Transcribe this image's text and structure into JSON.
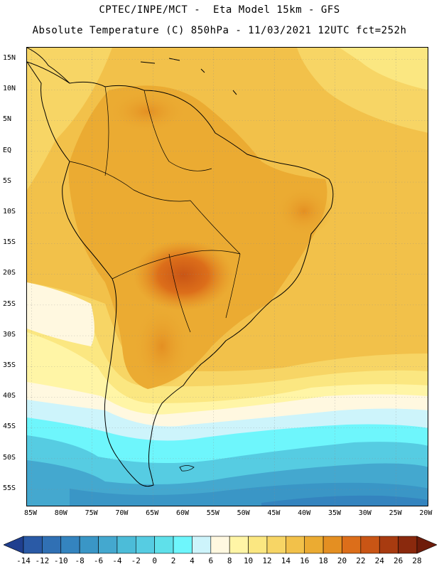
{
  "header": {
    "title_line1": "CPTEC/INPE/MCT -  Eta Model 15km - GFS",
    "title_line2": "Absolute Temperature (C) 850hPa - 11/03/2021 12UTC fct=252h"
  },
  "map": {
    "lat_labels": [
      "15N",
      "10N",
      "5N",
      "EQ",
      "5S",
      "10S",
      "15S",
      "20S",
      "25S",
      "30S",
      "35S",
      "40S",
      "45S",
      "50S",
      "55S"
    ],
    "lon_labels": [
      "85W",
      "80W",
      "75W",
      "70W",
      "65W",
      "60W",
      "55W",
      "50W",
      "45W",
      "40W",
      "35W",
      "30W",
      "25W",
      "20W"
    ]
  },
  "colorbar": {
    "labels": [
      "-14",
      "-12",
      "-10",
      "-8",
      "-6",
      "-4",
      "-2",
      "0",
      "2",
      "4",
      "6",
      "8",
      "10",
      "12",
      "14",
      "16",
      "18",
      "20",
      "22",
      "24",
      "26",
      "28"
    ],
    "colors": [
      "#1f3f8f",
      "#2a5aa6",
      "#3070b4",
      "#3484bf",
      "#3a96c6",
      "#44a8cf",
      "#4cbcd8",
      "#56cce2",
      "#5fe0ea",
      "#6ef6fc",
      "#cdf4fb",
      "#fff8e0",
      "#fff5a6",
      "#fbe781",
      "#f7d565",
      "#f2c14a",
      "#ebab32",
      "#e48f22",
      "#dc6e1a",
      "#c95515",
      "#a83b10",
      "#8a290d",
      "#6e1c0a"
    ]
  }
}
